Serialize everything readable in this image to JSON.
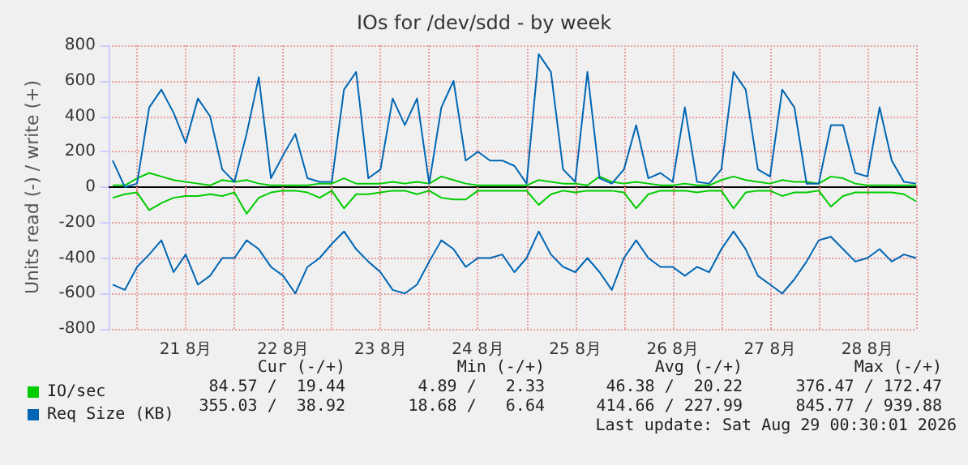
{
  "chart_data": {
    "type": "line",
    "title": "IOs for /dev/sdd - by week",
    "ylabel": "Units read (-) / write (+)",
    "x": [
      "2026-08-20T18:00",
      "2026-08-20T21:00",
      "2026-08-21T00:00",
      "2026-08-21T03:00",
      "2026-08-21T06:00",
      "2026-08-21T09:00",
      "2026-08-21T12:00",
      "2026-08-21T15:00",
      "2026-08-21T18:00",
      "2026-08-21T21:00",
      "2026-08-22T00:00",
      "2026-08-22T03:00",
      "2026-08-22T06:00",
      "2026-08-22T09:00",
      "2026-08-22T12:00",
      "2026-08-22T15:00",
      "2026-08-22T18:00",
      "2026-08-22T21:00",
      "2026-08-23T00:00",
      "2026-08-23T03:00",
      "2026-08-23T06:00",
      "2026-08-23T09:00",
      "2026-08-23T12:00",
      "2026-08-23T15:00",
      "2026-08-23T18:00",
      "2026-08-23T21:00",
      "2026-08-24T00:00",
      "2026-08-24T03:00",
      "2026-08-24T06:00",
      "2026-08-24T09:00",
      "2026-08-24T12:00",
      "2026-08-24T15:00",
      "2026-08-24T18:00",
      "2026-08-24T21:00",
      "2026-08-25T00:00",
      "2026-08-25T03:00",
      "2026-08-25T06:00",
      "2026-08-25T09:00",
      "2026-08-25T12:00",
      "2026-08-25T15:00",
      "2026-08-25T18:00",
      "2026-08-25T21:00",
      "2026-08-26T00:00",
      "2026-08-26T03:00",
      "2026-08-26T06:00",
      "2026-08-26T09:00",
      "2026-08-26T12:00",
      "2026-08-26T15:00",
      "2026-08-26T18:00",
      "2026-08-26T21:00",
      "2026-08-27T00:00",
      "2026-08-27T03:00",
      "2026-08-27T06:00",
      "2026-08-27T09:00",
      "2026-08-27T12:00",
      "2026-08-27T15:00",
      "2026-08-27T18:00",
      "2026-08-27T21:00",
      "2026-08-28T00:00",
      "2026-08-28T03:00",
      "2026-08-28T06:00",
      "2026-08-28T09:00",
      "2026-08-28T12:00",
      "2026-08-28T15:00",
      "2026-08-28T18:00",
      "2026-08-28T21:00",
      "2026-08-29T00:00"
    ],
    "series": [
      {
        "name": "IO/sec",
        "color": "#00cc00",
        "values": [
          10,
          10,
          50,
          80,
          60,
          40,
          30,
          20,
          10,
          40,
          30,
          40,
          20,
          10,
          10,
          10,
          10,
          20,
          20,
          50,
          20,
          20,
          20,
          30,
          20,
          30,
          20,
          60,
          40,
          20,
          10,
          10,
          10,
          10,
          10,
          40,
          30,
          20,
          20,
          10,
          60,
          30,
          20,
          30,
          20,
          10,
          10,
          20,
          10,
          10,
          40,
          60,
          40,
          30,
          20,
          40,
          30,
          30,
          20,
          60,
          50,
          20,
          10,
          10,
          10,
          10,
          10
        ]
      },
      {
        "color": "#00cc00",
        "values": [
          -60,
          -40,
          -30,
          -130,
          -90,
          -60,
          -50,
          -50,
          -40,
          -50,
          -30,
          -150,
          -60,
          -30,
          -20,
          -20,
          -30,
          -60,
          -20,
          -120,
          -40,
          -40,
          -30,
          -20,
          -20,
          -40,
          -20,
          -60,
          -70,
          -70,
          -20,
          -20,
          -20,
          -20,
          -20,
          -100,
          -40,
          -20,
          -30,
          -20,
          -20,
          -20,
          -30,
          -120,
          -40,
          -20,
          -20,
          -20,
          -30,
          -20,
          -20,
          -120,
          -30,
          -20,
          -20,
          -50,
          -30,
          -30,
          -20,
          -110,
          -50,
          -30,
          -30,
          -30,
          -30,
          -40,
          -80
        ]
      },
      {
        "name": "Req Size (KB)",
        "color": "#0066b3",
        "values": [
          150,
          0,
          20,
          450,
          550,
          420,
          250,
          500,
          400,
          100,
          30,
          300,
          620,
          50,
          180,
          300,
          50,
          30,
          30,
          550,
          650,
          50,
          100,
          500,
          350,
          500,
          20,
          450,
          600,
          150,
          200,
          150,
          150,
          120,
          20,
          750,
          650,
          100,
          30,
          650,
          50,
          20,
          100,
          350,
          50,
          80,
          30,
          450,
          30,
          20,
          100,
          650,
          550,
          100,
          60,
          550,
          450,
          20,
          20,
          350,
          350,
          80,
          60,
          450,
          150,
          30,
          20
        ]
      },
      {
        "color": "#0066b3",
        "values": [
          -550,
          -580,
          -450,
          -380,
          -300,
          -480,
          -380,
          -550,
          -500,
          -400,
          -400,
          -300,
          -350,
          -450,
          -500,
          -600,
          -450,
          -400,
          -320,
          -250,
          -350,
          -420,
          -480,
          -580,
          -600,
          -550,
          -420,
          -300,
          -350,
          -450,
          -400,
          -400,
          -380,
          -480,
          -400,
          -250,
          -380,
          -450,
          -480,
          -400,
          -480,
          -580,
          -400,
          -300,
          -400,
          -450,
          -450,
          -500,
          -450,
          -480,
          -350,
          -250,
          -350,
          -500,
          -550,
          -600,
          -520,
          -420,
          -300,
          -280,
          -350,
          -420,
          -400,
          -350,
          -420,
          -380,
          -400
        ]
      }
    ],
    "xlim": [
      "2026-08-20T17:00",
      "2026-08-29T00:00"
    ],
    "xticks": [
      {
        "value": "2026-08-21T00:00",
        "label": null
      },
      {
        "value": "2026-08-21T12:00",
        "label": "21 8月"
      },
      {
        "value": "2026-08-22T00:00",
        "label": null
      },
      {
        "value": "2026-08-22T12:00",
        "label": "22 8月"
      },
      {
        "value": "2026-08-23T00:00",
        "label": null
      },
      {
        "value": "2026-08-23T12:00",
        "label": "23 8月"
      },
      {
        "value": "2026-08-24T00:00",
        "label": null
      },
      {
        "value": "2026-08-24T12:00",
        "label": "24 8月"
      },
      {
        "value": "2026-08-25T00:00",
        "label": null
      },
      {
        "value": "2026-08-25T12:00",
        "label": "25 8月"
      },
      {
        "value": "2026-08-26T00:00",
        "label": null
      },
      {
        "value": "2026-08-26T12:00",
        "label": "26 8月"
      },
      {
        "value": "2026-08-27T00:00",
        "label": null
      },
      {
        "value": "2026-08-27T12:00",
        "label": "27 8月"
      },
      {
        "value": "2026-08-28T00:00",
        "label": null
      },
      {
        "value": "2026-08-28T12:00",
        "label": "28 8月"
      },
      {
        "value": "2026-08-29T00:00",
        "label": null
      }
    ],
    "ylim": [
      -800,
      800
    ],
    "yticks": [
      -800,
      -600,
      -400,
      -200,
      0,
      200,
      400,
      600,
      800
    ],
    "grid": true,
    "legend": "bottom left",
    "marker": "none",
    "line_style": "solid",
    "annotations": [
      "Cur (-/+)",
      "Min (-/+)",
      "Avg (-/+)",
      "Max (-/+)",
      "84.57 /  19.44",
      "4.89 /   2.33",
      "46.38 /  20.22",
      "376.47 / 172.47",
      "355.03 /  38.92",
      "18.68 /   6.64",
      "414.66 / 227.99",
      "845.77 / 939.88",
      "Last update: Sat Aug 29 00:30:01 2026"
    ]
  }
}
